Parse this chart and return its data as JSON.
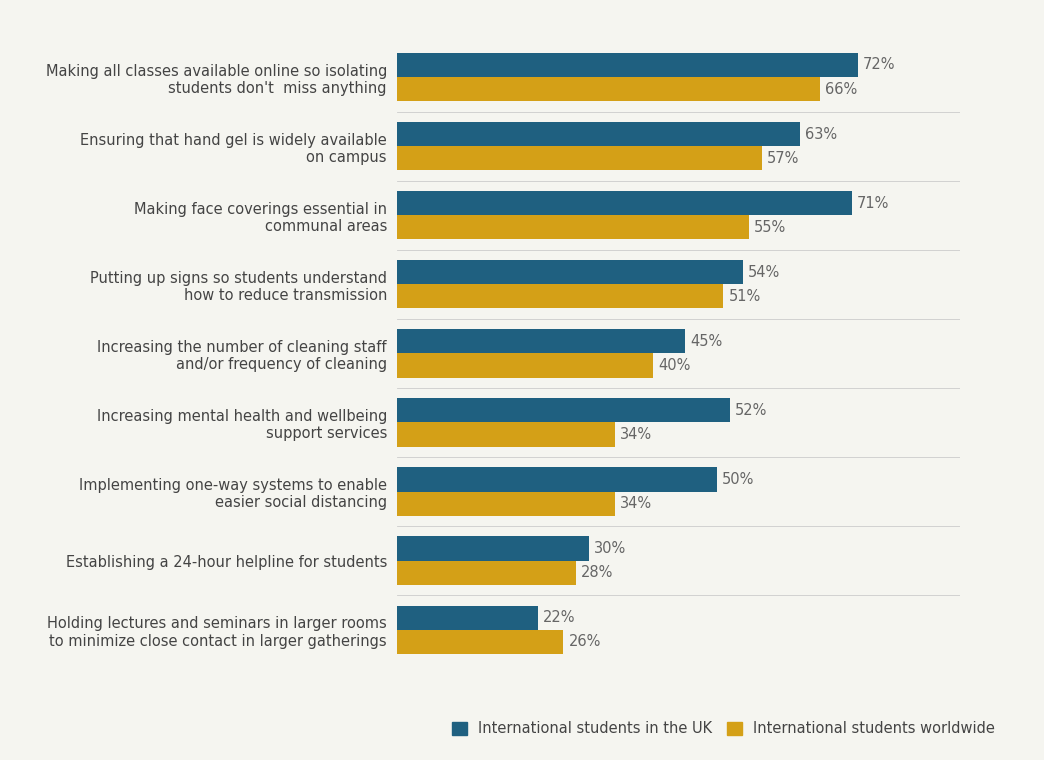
{
  "categories": [
    "Making all classes available online so isolating\nstudents don't  miss anything",
    "Ensuring that hand gel is widely available\non campus",
    "Making face coverings essential in\ncommunal areas",
    "Putting up signs so students understand\nhow to reduce transmission",
    "Increasing the number of cleaning staff\nand/or frequency of cleaning",
    "Increasing mental health and wellbeing\nsupport services",
    "Implementing one-way systems to enable\neasier social distancing",
    "Establishing a 24-hour helpline for students",
    "Holding lectures and seminars in larger rooms\nto minimize close contact in larger gatherings"
  ],
  "uk_values": [
    72,
    63,
    71,
    54,
    45,
    52,
    50,
    30,
    22
  ],
  "world_values": [
    66,
    57,
    55,
    51,
    40,
    34,
    34,
    28,
    26
  ],
  "uk_color": "#1f6080",
  "world_color": "#d4a017",
  "uk_label": "International students in the UK",
  "world_label": "International students worldwide",
  "background_color": "#f5f5f0",
  "bar_height": 0.35,
  "xlim": [
    0,
    88
  ],
  "label_fontsize": 10.5,
  "value_fontsize": 10.5,
  "legend_fontsize": 10.5
}
